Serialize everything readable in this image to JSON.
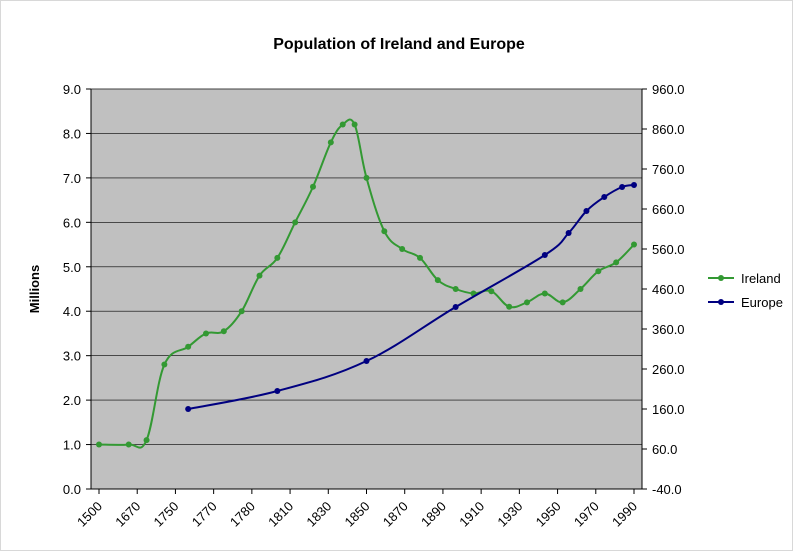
{
  "chart_data": {
    "type": "line",
    "title": "Population of Ireland and Europe",
    "ylabel_left": "Millions",
    "ylabel_right": "",
    "xlabel": "",
    "left_axis": {
      "min": 0,
      "max": 9,
      "ticks": [
        "0.0",
        "1.0",
        "2.0",
        "3.0",
        "4.0",
        "5.0",
        "6.0",
        "7.0",
        "8.0",
        "9.0"
      ]
    },
    "right_axis": {
      "min": -40,
      "max": 960,
      "ticks": [
        "-40.0",
        "60.0",
        "160.0",
        "260.0",
        "360.0",
        "460.0",
        "560.0",
        "660.0",
        "760.0",
        "860.0",
        "960.0"
      ]
    },
    "x_tick_labels": [
      "1500",
      "1670",
      "1750",
      "1770",
      "1780",
      "1810",
      "1830",
      "1850",
      "1870",
      "1890",
      "1910",
      "1930",
      "1950",
      "1970",
      "1990"
    ],
    "grid": true,
    "legend_position": "right",
    "series": [
      {
        "name": "Ireland",
        "axis": "left",
        "color": "#339933",
        "points": [
          [
            0.0,
            1.0
          ],
          [
            1.0,
            1.0
          ],
          [
            1.6,
            1.1
          ],
          [
            2.2,
            2.8
          ],
          [
            3.0,
            3.2
          ],
          [
            3.6,
            3.5
          ],
          [
            4.2,
            3.55
          ],
          [
            4.8,
            4.0
          ],
          [
            5.4,
            4.8
          ],
          [
            6.0,
            5.2
          ],
          [
            6.6,
            6.0
          ],
          [
            7.2,
            6.8
          ],
          [
            7.8,
            7.8
          ],
          [
            8.2,
            8.2
          ],
          [
            8.6,
            8.2
          ],
          [
            9.0,
            7.0
          ],
          [
            9.6,
            5.8
          ],
          [
            10.2,
            5.4
          ],
          [
            10.8,
            5.2
          ],
          [
            11.4,
            4.7
          ],
          [
            12.0,
            4.5
          ],
          [
            12.6,
            4.4
          ],
          [
            13.2,
            4.45
          ],
          [
            13.8,
            4.1
          ],
          [
            14.4,
            4.2
          ],
          [
            15.0,
            4.4
          ],
          [
            15.6,
            4.2
          ],
          [
            16.2,
            4.5
          ],
          [
            16.8,
            4.9
          ],
          [
            17.4,
            5.1
          ],
          [
            18.0,
            5.5
          ]
        ]
      },
      {
        "name": "Europe",
        "axis": "right",
        "color": "#000080",
        "points": [
          [
            3.0,
            160
          ],
          [
            6.0,
            205
          ],
          [
            9.0,
            280
          ],
          [
            12.0,
            415
          ],
          [
            15.0,
            545
          ],
          [
            15.8,
            600
          ],
          [
            16.4,
            655
          ],
          [
            17.0,
            690
          ],
          [
            17.6,
            715
          ],
          [
            18.0,
            720
          ]
        ]
      }
    ]
  }
}
